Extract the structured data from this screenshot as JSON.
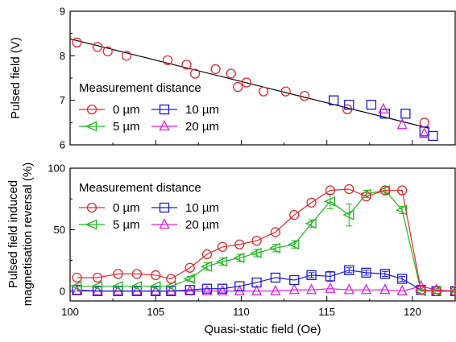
{
  "chart_data": [
    {
      "type": "scatter",
      "ylabel": "Pulsed field (V)",
      "xlim": [
        100,
        122.5
      ],
      "ylim": [
        6,
        9
      ],
      "yticks": [
        6,
        7,
        8,
        9
      ],
      "legend_title": "Measurement distance",
      "fit_line": {
        "x": [
          100,
          121
        ],
        "y": [
          8.38,
          6.37
        ],
        "color": "#000000"
      },
      "series": [
        {
          "name": "0 µm",
          "marker": "circle",
          "color": "#e8282f",
          "x": [
            100.4,
            101.6,
            102.2,
            103.3,
            105.7,
            106.8,
            107.3,
            108.5,
            109.4,
            109.8,
            110.3,
            111.3,
            112.6,
            113.7,
            116.2,
            120.7
          ],
          "y": [
            8.3,
            8.2,
            8.1,
            8.0,
            7.9,
            7.8,
            7.6,
            7.7,
            7.6,
            7.3,
            7.4,
            7.2,
            7.2,
            7.1,
            6.8,
            6.5
          ]
        },
        {
          "name": "10 µm",
          "marker": "square",
          "color": "#1a1ad6",
          "x": [
            115.4,
            116.3,
            117.6,
            118.4,
            119.6,
            120.7,
            121.2
          ],
          "y": [
            7.0,
            6.9,
            6.9,
            6.7,
            6.7,
            6.3,
            6.2
          ]
        },
        {
          "name": "5 µm",
          "marker": "triangle-left",
          "color": "#1db91d",
          "x": [],
          "y": []
        },
        {
          "name": "20 µm",
          "marker": "triangle-up",
          "color": "#e01fe0",
          "x": [
            118.3,
            119.4,
            120.7
          ],
          "y": [
            6.8,
            6.45,
            6.25
          ]
        }
      ]
    },
    {
      "type": "line",
      "ylabel": "Pulsed field induced magnetisation reversal (%)",
      "xlabel": "Quasi-static field (Oe)",
      "xlim": [
        100,
        122.5
      ],
      "ylim": [
        -8,
        100
      ],
      "xticks": [
        100,
        105,
        110,
        115,
        120
      ],
      "yticks": [
        0,
        50,
        100
      ],
      "legend_title": "Measurement distance",
      "series": [
        {
          "name": "0 µm",
          "marker": "circle",
          "color": "#e8282f",
          "x": [
            100.4,
            101.6,
            102.8,
            103.9,
            105,
            105.9,
            107,
            108,
            108.9,
            109.9,
            110.9,
            112,
            113.1,
            114.1,
            115.2,
            116.3,
            117.3,
            118.4,
            119.4,
            120.5,
            121.4,
            122.5
          ],
          "y": [
            11,
            11,
            14,
            14,
            13,
            10,
            19,
            30,
            36,
            38,
            41,
            48,
            62,
            72,
            82,
            83,
            77,
            82,
            82,
            1,
            0,
            0
          ]
        },
        {
          "name": "10 µm",
          "marker": "square",
          "color": "#1a1ad6",
          "x": [
            100.4,
            101.6,
            102.8,
            103.9,
            105,
            105.9,
            107,
            108,
            108.9,
            109.9,
            110.9,
            112,
            113.1,
            114.1,
            115.2,
            116.3,
            117.3,
            118.4,
            119.4,
            120.5,
            121.4,
            122.5
          ],
          "y": [
            1,
            0,
            0,
            0,
            0,
            0,
            1,
            2,
            2,
            4,
            7,
            11,
            9,
            13,
            12,
            17,
            15,
            14,
            10,
            1,
            0,
            0
          ],
          "yerr": [
            0,
            0,
            0,
            0,
            0,
            0,
            0,
            0,
            0,
            0,
            0,
            0,
            0,
            2,
            4,
            2,
            2,
            2,
            2,
            0,
            0,
            0
          ]
        },
        {
          "name": "5 µm",
          "marker": "triangle-left",
          "color": "#1db91d",
          "x": [
            100.4,
            101.6,
            102.8,
            103.9,
            105,
            105.9,
            107,
            108,
            108.9,
            109.9,
            110.9,
            112,
            113.1,
            114.1,
            115.2,
            116.3,
            117.3,
            118.4,
            119.4,
            120.5,
            121.4,
            122.5
          ],
          "y": [
            4,
            4,
            4,
            4,
            4,
            4,
            10,
            20,
            24,
            27,
            31,
            35,
            38,
            55,
            73,
            62,
            79,
            82,
            66,
            0,
            0,
            0
          ],
          "yerr": [
            0,
            0,
            0,
            0,
            0,
            0,
            2,
            3,
            3,
            3,
            3,
            3,
            3,
            3,
            6,
            9,
            3,
            3,
            3,
            0,
            0,
            0
          ]
        },
        {
          "name": "20 µm",
          "marker": "triangle-up",
          "color": "#e01fe0",
          "x": [
            100.4,
            101.6,
            102.8,
            103.9,
            105,
            105.9,
            107,
            108,
            108.9,
            109.9,
            110.9,
            112,
            113.1,
            114.1,
            115.2,
            116.3,
            117.3,
            118.4,
            119.4,
            120.5,
            121.4,
            122.5
          ],
          "y": [
            0,
            0,
            0,
            0,
            0,
            0,
            0,
            0,
            0,
            0,
            0,
            0,
            1,
            1,
            2,
            1,
            1,
            1,
            0,
            4,
            1,
            0
          ]
        }
      ]
    }
  ]
}
